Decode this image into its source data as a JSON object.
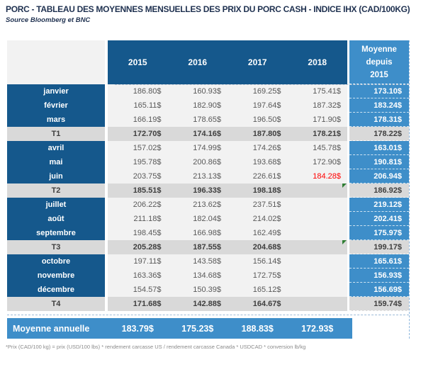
{
  "title": "PORC - TABLEAU DES MOYENNES MENSUELLES DES PRIX DU PORC CASH - INDICE IHX (CAD/100KG)",
  "source": "Source Bloomberg et BNC",
  "footnote": "*Prix (CAD/100 kg) = prix (USD/100 lbs) * rendement carcasse US / rendement carcasse Canada * USDCAD * conversion lb/kg",
  "colors": {
    "dark_blue": "#15588C",
    "light_blue": "#3E8EC9",
    "total_row_gray": "#D9D9D9",
    "cell_gray": "#F2F2F2",
    "red_value": "#FF0000",
    "comment_marker_green": "#2E7D32",
    "title_navy": "#1F3150"
  },
  "table": {
    "year_headers": [
      "2015",
      "2016",
      "2017",
      "2018"
    ],
    "avg_header_lines": [
      "Moyenne",
      "depuis",
      "2015"
    ],
    "rows": [
      {
        "label": "janvier",
        "type": "month",
        "values": [
          "186.80$",
          "160.93$",
          "169.25$",
          "175.41$"
        ],
        "avg": "173.10$"
      },
      {
        "label": "février",
        "type": "month",
        "values": [
          "165.11$",
          "182.90$",
          "197.64$",
          "187.32$"
        ],
        "avg": "183.24$"
      },
      {
        "label": "mars",
        "type": "month",
        "values": [
          "166.19$",
          "178.65$",
          "196.50$",
          "171.90$"
        ],
        "avg": "178.31$"
      },
      {
        "label": "T1",
        "type": "total",
        "values": [
          "172.70$",
          "174.16$",
          "187.80$",
          "178.21$"
        ],
        "avg": "178.22$"
      },
      {
        "label": "avril",
        "type": "month",
        "values": [
          "157.02$",
          "174.99$",
          "174.26$",
          "145.78$"
        ],
        "avg": "163.01$"
      },
      {
        "label": "mai",
        "type": "month",
        "values": [
          "195.78$",
          "200.86$",
          "193.68$",
          "172.90$"
        ],
        "avg": "190.81$"
      },
      {
        "label": "juin",
        "type": "month",
        "values": [
          "203.75$",
          "213.13$",
          "226.61$",
          "184.28$"
        ],
        "avg": "206.94$",
        "red_col": 3
      },
      {
        "label": "T2",
        "type": "total",
        "values": [
          "185.51$",
          "196.33$",
          "198.18$",
          ""
        ],
        "avg": "186.92$",
        "marker": true
      },
      {
        "label": "juillet",
        "type": "month",
        "values": [
          "206.22$",
          "213.62$",
          "237.51$",
          ""
        ],
        "avg": "219.12$"
      },
      {
        "label": "août",
        "type": "month",
        "values": [
          "211.18$",
          "182.04$",
          "214.02$",
          ""
        ],
        "avg": "202.41$"
      },
      {
        "label": "septembre",
        "type": "month",
        "values": [
          "198.45$",
          "166.98$",
          "162.49$",
          ""
        ],
        "avg": "175.97$"
      },
      {
        "label": "T3",
        "type": "total",
        "values": [
          "205.28$",
          "187.55$",
          "204.68$",
          ""
        ],
        "avg": "199.17$",
        "marker": true
      },
      {
        "label": "octobre",
        "type": "month",
        "values": [
          "197.11$",
          "143.58$",
          "156.14$",
          ""
        ],
        "avg": "165.61$"
      },
      {
        "label": "novembre",
        "type": "month",
        "values": [
          "163.36$",
          "134.68$",
          "172.75$",
          ""
        ],
        "avg": "156.93$"
      },
      {
        "label": "décembre",
        "type": "month",
        "values": [
          "154.57$",
          "150.39$",
          "165.12$",
          ""
        ],
        "avg": "156.69$"
      },
      {
        "label": "T4",
        "type": "total",
        "values": [
          "171.68$",
          "142.88$",
          "164.67$",
          ""
        ],
        "avg": "159.74$"
      }
    ],
    "annual": {
      "label": "Moyenne annuelle",
      "values": [
        "183.79$",
        "175.23$",
        "188.83$",
        "172.93$"
      ]
    }
  },
  "chart_data": {
    "type": "table",
    "title": "PORC - TABLEAU DES MOYENNES MENSUELLES DES PRIX DU PORC CASH - INDICE IHX (CAD/100KG)",
    "unit": "CAD/100KG",
    "columns": [
      "2015",
      "2016",
      "2017",
      "2018",
      "Moyenne depuis 2015"
    ],
    "row_labels": [
      "janvier",
      "février",
      "mars",
      "T1",
      "avril",
      "mai",
      "juin",
      "T2",
      "juillet",
      "août",
      "septembre",
      "T3",
      "octobre",
      "novembre",
      "décembre",
      "T4",
      "Moyenne annuelle"
    ],
    "rows": [
      [
        186.8,
        160.93,
        169.25,
        175.41,
        173.1
      ],
      [
        165.11,
        182.9,
        197.64,
        187.32,
        183.24
      ],
      [
        166.19,
        178.65,
        196.5,
        171.9,
        178.31
      ],
      [
        172.7,
        174.16,
        187.8,
        178.21,
        178.22
      ],
      [
        157.02,
        174.99,
        174.26,
        145.78,
        163.01
      ],
      [
        195.78,
        200.86,
        193.68,
        172.9,
        190.81
      ],
      [
        203.75,
        213.13,
        226.61,
        184.28,
        206.94
      ],
      [
        185.51,
        196.33,
        198.18,
        null,
        186.92
      ],
      [
        206.22,
        213.62,
        237.51,
        null,
        219.12
      ],
      [
        211.18,
        182.04,
        214.02,
        null,
        202.41
      ],
      [
        198.45,
        166.98,
        162.49,
        null,
        175.97
      ],
      [
        205.28,
        187.55,
        204.68,
        null,
        199.17
      ],
      [
        197.11,
        143.58,
        156.14,
        null,
        165.61
      ],
      [
        163.36,
        134.68,
        172.75,
        null,
        156.93
      ],
      [
        154.57,
        150.39,
        165.12,
        null,
        156.69
      ],
      [
        171.68,
        142.88,
        164.67,
        null,
        159.74
      ],
      [
        183.79,
        175.23,
        188.83,
        172.93,
        null
      ]
    ]
  }
}
